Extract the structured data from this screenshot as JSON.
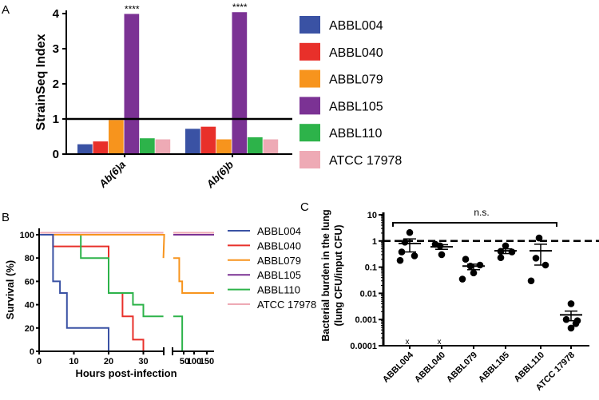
{
  "colors": {
    "ABBL004": "#3a52a4",
    "ABBL040": "#e8302a",
    "ABBL079": "#f7941d",
    "ABBL105": "#7b3294",
    "ABBL110": "#2db34a",
    "ATCC 17978": "#eeaab5"
  },
  "chart_data": [
    {
      "panel": "A",
      "type": "bar",
      "categories": [
        "Ab(6)a",
        "Ab(6)b"
      ],
      "ylabel": "StrainSeq Index",
      "ylim": [
        0,
        4.1
      ],
      "yticks": [
        "0",
        "1",
        "2",
        "3",
        "4"
      ],
      "reference_line": 1,
      "significance": "****",
      "series": [
        {
          "name": "ABBL004",
          "values": [
            0.28,
            0.72
          ]
        },
        {
          "name": "ABBL040",
          "values": [
            0.36,
            0.78
          ]
        },
        {
          "name": "ABBL079",
          "values": [
            0.97,
            0.42
          ]
        },
        {
          "name": "ABBL105",
          "values": [
            3.99,
            4.04
          ]
        },
        {
          "name": "ABBL110",
          "values": [
            0.45,
            0.48
          ]
        },
        {
          "name": "ATCC 17978",
          "values": [
            0.42,
            0.42
          ]
        }
      ]
    },
    {
      "panel": "B",
      "type": "line",
      "xlabel": "Hours post-infection",
      "ylabel": "Survival (%)",
      "ylim": [
        0,
        100
      ],
      "yticks": [
        "0",
        "20",
        "40",
        "60",
        "80",
        "100"
      ],
      "xticks": [
        "0",
        "10",
        "20",
        "30",
        "50",
        "100",
        "150"
      ],
      "axis_break": 36,
      "series": [
        {
          "name": "ABBL004",
          "steps": [
            [
              0,
              100
            ],
            [
              4,
              60
            ],
            [
              6,
              50
            ],
            [
              8,
              20
            ],
            [
              20,
              0
            ]
          ]
        },
        {
          "name": "ABBL040",
          "steps": [
            [
              0,
              100
            ],
            [
              4,
              90
            ],
            [
              20,
              50
            ],
            [
              24,
              30
            ],
            [
              27,
              10
            ],
            [
              30,
              0
            ]
          ]
        },
        {
          "name": "ABBL079",
          "steps": [
            [
              0,
              100
            ],
            [
              36,
              80
            ],
            [
              44,
              60
            ],
            [
              48,
              50
            ],
            [
              160,
              50
            ]
          ]
        },
        {
          "name": "ABBL105",
          "steps": [
            [
              0,
              100
            ],
            [
              160,
              100
            ]
          ]
        },
        {
          "name": "ABBL110",
          "steps": [
            [
              0,
              100
            ],
            [
              12,
              80
            ],
            [
              20,
              50
            ],
            [
              27,
              40
            ],
            [
              30,
              30
            ],
            [
              48,
              0
            ]
          ]
        },
        {
          "name": "ATCC 17978",
          "steps": [
            [
              0,
              100
            ],
            [
              160,
              100
            ]
          ]
        }
      ]
    },
    {
      "panel": "C",
      "type": "scatter",
      "ylabel": "Bacterial burden in the lung",
      "ylabel2": "(lung CFU/input CFU)",
      "yscale": "log",
      "ylim": [
        0.0001,
        10
      ],
      "yticks": [
        "0.0001",
        "0.001",
        "0.01",
        "0.1",
        "1",
        "10"
      ],
      "reference_line": 1,
      "bracket_label": "n.s.",
      "dead_marker": "x",
      "categories": [
        "ABBL004",
        "ABBL040",
        "ABBL079",
        "ABBL105",
        "ABBL110",
        "ATCC 17978"
      ],
      "groups": [
        {
          "values": [
            2.1,
            0.9,
            0.38,
            0.27,
            0.18
          ],
          "mean": 0.8,
          "sem": [
            0.38,
            1.2
          ],
          "dead": 1
        },
        {
          "values": [
            0.75,
            0.65,
            0.3
          ],
          "mean": 0.6,
          "sem": [
            0.48,
            0.72
          ],
          "dead": 1
        },
        {
          "values": [
            0.2,
            0.12,
            0.11,
            0.06,
            0.035
          ],
          "mean": 0.11,
          "sem": [
            0.08,
            0.13
          ],
          "dead": 0
        },
        {
          "values": [
            0.65,
            0.4,
            0.38,
            0.23
          ],
          "mean": 0.42,
          "sem": [
            0.33,
            0.5
          ],
          "dead": 0
        },
        {
          "values": [
            1.3,
            0.22,
            0.12,
            0.03
          ],
          "mean": 0.42,
          "sem": [
            0.12,
            0.75
          ],
          "dead": 0
        },
        {
          "values": [
            0.004,
            0.001,
            0.0009,
            0.0007,
            0.00047
          ],
          "mean": 0.0015,
          "sem": [
            0.0009,
            0.0021
          ],
          "dead": 0
        }
      ]
    }
  ],
  "panel_labels": [
    "A",
    "B",
    "C"
  ]
}
